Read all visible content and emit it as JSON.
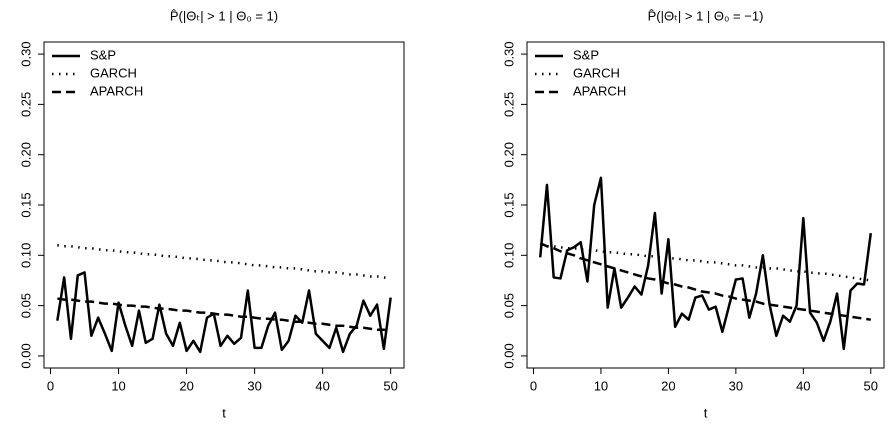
{
  "chart_data": [
    {
      "type": "line",
      "title": "P̂(|Θₜ| > 1 | Θ₀ = 1)",
      "x_label": "t",
      "x": [
        1,
        2,
        3,
        4,
        5,
        6,
        7,
        8,
        9,
        10,
        11,
        12,
        13,
        14,
        15,
        16,
        17,
        18,
        19,
        20,
        21,
        22,
        23,
        24,
        25,
        26,
        27,
        28,
        29,
        30,
        31,
        32,
        33,
        34,
        35,
        36,
        37,
        38,
        39,
        40,
        41,
        42,
        43,
        44,
        45,
        46,
        47,
        48,
        49,
        50
      ],
      "xlim": [
        -0.96,
        51.96
      ],
      "xticks": [
        0,
        10,
        20,
        30,
        40,
        50
      ],
      "ylim": [
        -0.012,
        0.312
      ],
      "yticks": [
        {
          "value": 0,
          "label": "0.00"
        },
        {
          "value": 0.05,
          "label": "0.05"
        },
        {
          "value": 0.1,
          "label": "0.10"
        },
        {
          "value": 0.15,
          "label": "0.15"
        },
        {
          "value": 0.2,
          "label": "0.20"
        },
        {
          "value": 0.25,
          "label": "0.25"
        },
        {
          "value": 0.3,
          "label": "0.30"
        }
      ],
      "legend": "top-left",
      "series": [
        {
          "name": "S&P",
          "color": "#000000",
          "dash": "solid",
          "values": [
            0.035,
            0.078,
            0.017,
            0.08,
            0.083,
            0.02,
            0.038,
            0.022,
            0.005,
            0.053,
            0.03,
            0.01,
            0.045,
            0.013,
            0.017,
            0.051,
            0.022,
            0.01,
            0.033,
            0.005,
            0.015,
            0.004,
            0.038,
            0.042,
            0.01,
            0.02,
            0.012,
            0.018,
            0.065,
            0.008,
            0.008,
            0.03,
            0.043,
            0.006,
            0.015,
            0.04,
            0.033,
            0.065,
            0.022,
            0.015,
            0.008,
            0.028,
            0.004,
            0.022,
            0.03,
            0.055,
            0.04,
            0.051,
            0.007,
            0.058
          ]
        },
        {
          "name": "GARCH",
          "color": "#000000",
          "dash": "dotted",
          "values": [
            0.11,
            0.109,
            0.109,
            0.108,
            0.107,
            0.107,
            0.106,
            0.105,
            0.105,
            0.104,
            0.103,
            0.103,
            0.102,
            0.101,
            0.101,
            0.1,
            0.099,
            0.099,
            0.098,
            0.097,
            0.097,
            0.096,
            0.095,
            0.095,
            0.094,
            0.093,
            0.093,
            0.092,
            0.091,
            0.09,
            0.09,
            0.089,
            0.088,
            0.088,
            0.087,
            0.087,
            0.086,
            0.085,
            0.084,
            0.084,
            0.083,
            0.083,
            0.082,
            0.081,
            0.081,
            0.08,
            0.079,
            0.079,
            0.078,
            0.077
          ]
        },
        {
          "name": "APARCH",
          "color": "#000000",
          "dash": "dashed",
          "values": [
            0.057,
            0.056,
            0.056,
            0.055,
            0.054,
            0.054,
            0.053,
            0.052,
            0.052,
            0.051,
            0.05,
            0.05,
            0.049,
            0.049,
            0.048,
            0.047,
            0.047,
            0.046,
            0.045,
            0.045,
            0.044,
            0.043,
            0.043,
            0.042,
            0.041,
            0.041,
            0.04,
            0.039,
            0.039,
            0.038,
            0.037,
            0.037,
            0.036,
            0.036,
            0.035,
            0.034,
            0.034,
            0.033,
            0.032,
            0.032,
            0.031,
            0.03,
            0.03,
            0.029,
            0.028,
            0.028,
            0.027,
            0.026,
            0.026,
            0.025
          ]
        }
      ]
    },
    {
      "type": "line",
      "title": "P̂(|Θₜ| > 1 | Θ₀ = −1)",
      "x_label": "t",
      "x": [
        1,
        2,
        3,
        4,
        5,
        6,
        7,
        8,
        9,
        10,
        11,
        12,
        13,
        14,
        15,
        16,
        17,
        18,
        19,
        20,
        21,
        22,
        23,
        24,
        25,
        26,
        27,
        28,
        29,
        30,
        31,
        32,
        33,
        34,
        35,
        36,
        37,
        38,
        39,
        40,
        41,
        42,
        43,
        44,
        45,
        46,
        47,
        48,
        49,
        50
      ],
      "xlim": [
        -0.96,
        51.96
      ],
      "xticks": [
        0,
        10,
        20,
        30,
        40,
        50
      ],
      "ylim": [
        -0.012,
        0.312
      ],
      "yticks": [
        {
          "value": 0,
          "label": "0.00"
        },
        {
          "value": 0.05,
          "label": "0.05"
        },
        {
          "value": 0.1,
          "label": "0.10"
        },
        {
          "value": 0.15,
          "label": "0.15"
        },
        {
          "value": 0.2,
          "label": "0.20"
        },
        {
          "value": 0.25,
          "label": "0.25"
        },
        {
          "value": 0.3,
          "label": "0.30"
        }
      ],
      "legend": "top-left",
      "series": [
        {
          "name": "S&P",
          "color": "#000000",
          "dash": "solid",
          "values": [
            0.098,
            0.17,
            0.078,
            0.077,
            0.105,
            0.108,
            0.113,
            0.074,
            0.15,
            0.177,
            0.048,
            0.087,
            0.048,
            0.058,
            0.069,
            0.061,
            0.09,
            0.142,
            0.062,
            0.116,
            0.029,
            0.042,
            0.036,
            0.058,
            0.06,
            0.046,
            0.049,
            0.024,
            0.05,
            0.076,
            0.077,
            0.038,
            0.062,
            0.1,
            0.051,
            0.02,
            0.04,
            0.034,
            0.05,
            0.137,
            0.043,
            0.033,
            0.015,
            0.034,
            0.062,
            0.007,
            0.065,
            0.072,
            0.071,
            0.122
          ]
        },
        {
          "name": "GARCH",
          "color": "#000000",
          "dash": "dotted",
          "values": [
            0.11,
            0.109,
            0.109,
            0.108,
            0.107,
            0.107,
            0.106,
            0.105,
            0.105,
            0.104,
            0.103,
            0.103,
            0.102,
            0.101,
            0.101,
            0.1,
            0.099,
            0.099,
            0.098,
            0.097,
            0.097,
            0.096,
            0.095,
            0.095,
            0.094,
            0.093,
            0.093,
            0.092,
            0.091,
            0.09,
            0.09,
            0.089,
            0.088,
            0.088,
            0.087,
            0.087,
            0.086,
            0.085,
            0.084,
            0.084,
            0.083,
            0.082,
            0.082,
            0.081,
            0.08,
            0.079,
            0.078,
            0.077,
            0.076,
            0.075
          ]
        },
        {
          "name": "APARCH",
          "color": "#000000",
          "dash": "dashed",
          "values": [
            0.112,
            0.109,
            0.107,
            0.104,
            0.102,
            0.1,
            0.097,
            0.095,
            0.093,
            0.091,
            0.089,
            0.087,
            0.085,
            0.083,
            0.081,
            0.079,
            0.077,
            0.076,
            0.074,
            0.072,
            0.071,
            0.069,
            0.068,
            0.066,
            0.064,
            0.063,
            0.062,
            0.06,
            0.059,
            0.057,
            0.056,
            0.055,
            0.054,
            0.052,
            0.051,
            0.05,
            0.049,
            0.048,
            0.047,
            0.046,
            0.045,
            0.044,
            0.043,
            0.042,
            0.041,
            0.04,
            0.039,
            0.038,
            0.037,
            0.036
          ]
        }
      ]
    }
  ]
}
